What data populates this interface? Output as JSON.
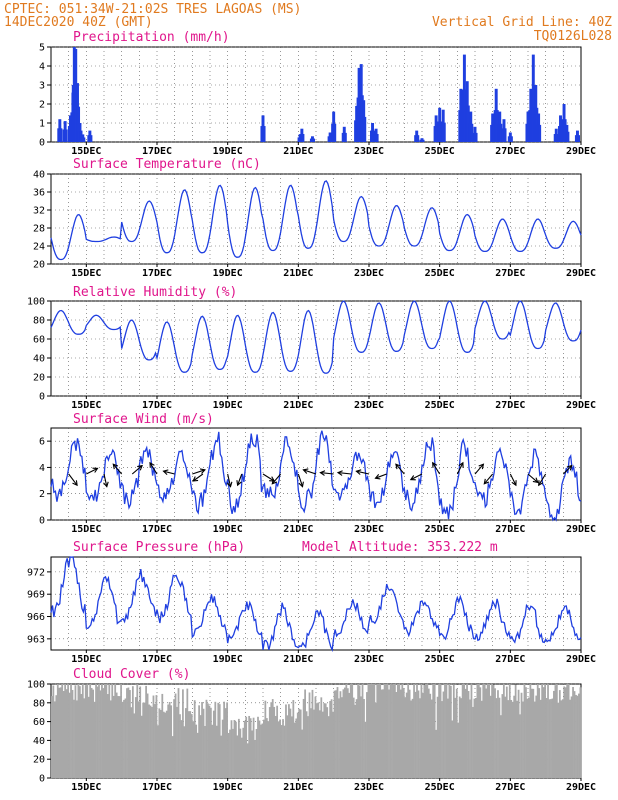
{
  "header": {
    "left_line1": "CPTEC:   051:34W-21:02S  TRES LAGOAS (MS)",
    "left_line2": "14DEC2020 40Z (GMT)",
    "right_line1": "Vertical Grid Line: 40Z",
    "right_line2": "TQ0126L028"
  },
  "colors": {
    "header": "#e07a1f",
    "panel_title": "#e0168c",
    "series": "#1f3fe0",
    "precip_bars": "#1f3fe0",
    "cloud_bars": "#a8a8a8",
    "wind_arrows": "#000000"
  },
  "chart_data": [
    {
      "id": "precipitation",
      "type": "bar",
      "title": "Precipitation (mm/h)",
      "ylim": [
        0,
        5
      ],
      "yticks": [
        "0",
        "1",
        "2",
        "3",
        "4",
        "5"
      ],
      "x_start": "14DEC2020",
      "x_end": "29DEC2020",
      "xtick_labels": [
        "15DEC",
        "17DEC",
        "19DEC",
        "21DEC",
        "23DEC",
        "25DEC",
        "27DEC",
        "29DEC"
      ],
      "grid": true,
      "events": [
        {
          "day": 0.25,
          "value": 1.2
        },
        {
          "day": 0.4,
          "value": 1.1
        },
        {
          "day": 0.55,
          "value": 1.4
        },
        {
          "day": 0.62,
          "value": 2.6
        },
        {
          "day": 0.66,
          "value": 5.0
        },
        {
          "day": 0.7,
          "value": 4.9
        },
        {
          "day": 0.75,
          "value": 3.1
        },
        {
          "day": 0.82,
          "value": 1.0
        },
        {
          "day": 0.9,
          "value": 0.4
        },
        {
          "day": 1.1,
          "value": 0.6
        },
        {
          "day": 6.0,
          "value": 1.4
        },
        {
          "day": 7.05,
          "value": 0.4
        },
        {
          "day": 7.1,
          "value": 0.7
        },
        {
          "day": 7.4,
          "value": 0.3
        },
        {
          "day": 7.9,
          "value": 0.5
        },
        {
          "day": 8.0,
          "value": 1.6
        },
        {
          "day": 8.3,
          "value": 0.8
        },
        {
          "day": 8.65,
          "value": 1.9
        },
        {
          "day": 8.72,
          "value": 3.9
        },
        {
          "day": 8.78,
          "value": 4.1
        },
        {
          "day": 8.85,
          "value": 2.2
        },
        {
          "day": 9.1,
          "value": 1.0
        },
        {
          "day": 9.2,
          "value": 0.7
        },
        {
          "day": 10.35,
          "value": 0.6
        },
        {
          "day": 10.5,
          "value": 0.2
        },
        {
          "day": 10.9,
          "value": 1.4
        },
        {
          "day": 11.0,
          "value": 1.8
        },
        {
          "day": 11.1,
          "value": 1.7
        },
        {
          "day": 11.6,
          "value": 2.8
        },
        {
          "day": 11.7,
          "value": 4.6
        },
        {
          "day": 11.78,
          "value": 3.2
        },
        {
          "day": 11.88,
          "value": 1.6
        },
        {
          "day": 12.0,
          "value": 0.8
        },
        {
          "day": 12.5,
          "value": 1.5
        },
        {
          "day": 12.6,
          "value": 2.8
        },
        {
          "day": 12.7,
          "value": 1.6
        },
        {
          "day": 12.82,
          "value": 1.2
        },
        {
          "day": 13.0,
          "value": 0.5
        },
        {
          "day": 13.5,
          "value": 1.6
        },
        {
          "day": 13.58,
          "value": 2.8
        },
        {
          "day": 13.65,
          "value": 4.6
        },
        {
          "day": 13.72,
          "value": 3.0
        },
        {
          "day": 13.8,
          "value": 1.5
        },
        {
          "day": 14.3,
          "value": 0.7
        },
        {
          "day": 14.42,
          "value": 1.4
        },
        {
          "day": 14.52,
          "value": 2.0
        },
        {
          "day": 14.6,
          "value": 0.9
        },
        {
          "day": 14.9,
          "value": 0.6
        }
      ]
    },
    {
      "id": "temperature",
      "type": "line",
      "title": "Surface Temperature (nC)",
      "ylim": [
        20,
        40
      ],
      "yticks": [
        "20",
        "24",
        "28",
        "32",
        "36",
        "40"
      ],
      "xtick_labels": [
        "15DEC",
        "17DEC",
        "19DEC",
        "21DEC",
        "23DEC",
        "25DEC",
        "27DEC",
        "29DEC"
      ],
      "grid": true,
      "daily_max": [
        31,
        26,
        34,
        36.5,
        37.5,
        37,
        37.5,
        38.5,
        35,
        33,
        32.5,
        31,
        30,
        30,
        29.5
      ],
      "daily_min": [
        21,
        25,
        25,
        22.5,
        22.5,
        21.5,
        23,
        23.5,
        25,
        24,
        24,
        23,
        22.8,
        22.8,
        23.5
      ]
    },
    {
      "id": "humidity",
      "type": "line",
      "title": "Relative Humidity (%)",
      "ylim": [
        0,
        100
      ],
      "yticks": [
        "0",
        "20",
        "40",
        "60",
        "80",
        "100"
      ],
      "xtick_labels": [
        "15DEC",
        "17DEC",
        "19DEC",
        "21DEC",
        "23DEC",
        "25DEC",
        "27DEC",
        "29DEC"
      ],
      "grid": true,
      "daily_max": [
        90,
        85,
        80,
        78,
        84,
        85,
        88,
        90,
        100,
        98,
        100,
        100,
        100,
        100,
        98
      ],
      "daily_min": [
        65,
        70,
        38,
        25,
        28,
        25,
        26,
        24,
        46,
        47,
        50,
        46,
        60,
        50,
        58
      ]
    },
    {
      "id": "wind",
      "type": "line",
      "title": "Surface Wind (m/s)",
      "ylim": [
        0,
        7
      ],
      "yticks": [
        "0",
        "2",
        "4",
        "6"
      ],
      "xtick_labels": [
        "15DEC",
        "17DEC",
        "19DEC",
        "21DEC",
        "23DEC",
        "25DEC",
        "27DEC",
        "29DEC"
      ],
      "grid": true,
      "speed_max": [
        5.8,
        5.2,
        5.5,
        5.0,
        6.2,
        6.8,
        6.0,
        6.5,
        5.0,
        5.0,
        6.0,
        5.5,
        5.2,
        5.0,
        4.5
      ],
      "speed_min": [
        2.0,
        1.8,
        1.5,
        1.8,
        1.3,
        1.0,
        2.0,
        1.5,
        2.0,
        1.5,
        1.5,
        0.8,
        1.5,
        1.0,
        0.5
      ],
      "vectors": [
        {
          "day": 0.5,
          "u": 0.6,
          "v": -0.8
        },
        {
          "day": 1.0,
          "u": 0.8,
          "v": 0.4
        },
        {
          "day": 1.5,
          "u": 0.2,
          "v": -0.9
        },
        {
          "day": 2.0,
          "u": -0.6,
          "v": 0.7
        },
        {
          "day": 2.3,
          "u": 0.7,
          "v": 0.6
        },
        {
          "day": 3.0,
          "u": -0.5,
          "v": 0.8
        },
        {
          "day": 3.5,
          "u": -0.8,
          "v": 0.2
        },
        {
          "day": 4.0,
          "u": 0.9,
          "v": 0.3
        },
        {
          "day": 4.3,
          "u": -0.7,
          "v": -0.5
        },
        {
          "day": 5.0,
          "u": 0.2,
          "v": -0.9
        },
        {
          "day": 5.4,
          "u": -0.3,
          "v": -0.8
        },
        {
          "day": 6.0,
          "u": 0.8,
          "v": -0.5
        },
        {
          "day": 6.5,
          "u": -0.6,
          "v": -0.7
        },
        {
          "day": 7.0,
          "u": 0.3,
          "v": -0.9
        },
        {
          "day": 7.5,
          "u": -0.9,
          "v": 0.3
        },
        {
          "day": 8.0,
          "u": -0.95,
          "v": 0.1
        },
        {
          "day": 8.5,
          "u": -0.95,
          "v": 0.1
        },
        {
          "day": 9.0,
          "u": -0.9,
          "v": 0.2
        },
        {
          "day": 9.5,
          "u": -0.8,
          "v": -0.3
        },
        {
          "day": 10.0,
          "u": -0.6,
          "v": 0.7
        },
        {
          "day": 10.5,
          "u": -0.8,
          "v": -0.4
        },
        {
          "day": 11.0,
          "u": -0.5,
          "v": 0.8
        },
        {
          "day": 11.5,
          "u": 0.4,
          "v": 0.8
        },
        {
          "day": 12.0,
          "u": 0.6,
          "v": 0.7
        },
        {
          "day": 12.5,
          "u": -0.6,
          "v": -0.7
        },
        {
          "day": 13.0,
          "u": 0.4,
          "v": -0.8
        },
        {
          "day": 13.5,
          "u": 0.7,
          "v": -0.6
        },
        {
          "day": 14.0,
          "u": -0.5,
          "v": -0.8
        },
        {
          "day": 14.5,
          "u": 0.6,
          "v": 0.6
        }
      ]
    },
    {
      "id": "pressure",
      "type": "line",
      "title": "Surface Pressure (hPa)",
      "annotation": "Model Altitude: 353.222 m",
      "ylim": [
        961.5,
        974
      ],
      "yticks": [
        "963",
        "966",
        "969",
        "972"
      ],
      "xtick_labels": [
        "15DEC",
        "17DEC",
        "19DEC",
        "21DEC",
        "23DEC",
        "25DEC",
        "27DEC",
        "29DEC"
      ],
      "grid": true,
      "daily_max": [
        973.5,
        971,
        971.5,
        971.5,
        968.5,
        967.5,
        967,
        966.5,
        968,
        969.8,
        968,
        968,
        968,
        967.5,
        967
      ],
      "daily_min": [
        967,
        965,
        966,
        966,
        964,
        963,
        962,
        962,
        963.5,
        965.5,
        964,
        963.5,
        963.5,
        962.5,
        963
      ]
    },
    {
      "id": "cloud",
      "type": "bar",
      "title": "Cloud Cover (%)",
      "ylim": [
        0,
        100
      ],
      "yticks": [
        "0",
        "20",
        "40",
        "60",
        "80",
        "100"
      ],
      "xtick_labels": [
        "15DEC",
        "17DEC",
        "19DEC",
        "21DEC",
        "23DEC",
        "25DEC",
        "27DEC",
        "29DEC"
      ],
      "grid": true,
      "daily_mean": [
        95,
        96,
        88,
        82,
        70,
        55,
        70,
        80,
        96,
        97,
        97,
        96,
        97,
        95,
        94
      ]
    }
  ]
}
